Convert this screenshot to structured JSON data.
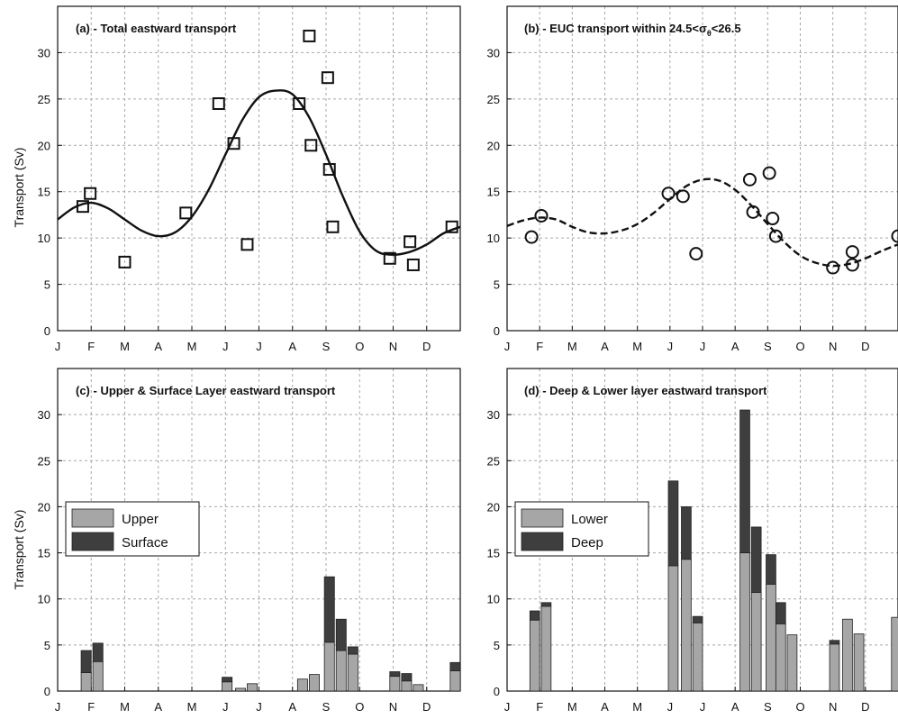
{
  "months": [
    "J",
    "F",
    "M",
    "A",
    "M",
    "J",
    "J",
    "A",
    "S",
    "O",
    "N",
    "D"
  ],
  "chart_data": [
    {
      "id": "a",
      "type": "scatter",
      "title": "(a) - Total eastward transport",
      "ylabel": "Transport (Sv)",
      "ylim": [
        0,
        35
      ],
      "yticks": [
        0,
        5,
        10,
        15,
        20,
        25,
        30
      ],
      "xlim": [
        0,
        12
      ],
      "grid": true,
      "marker": "square",
      "points": [
        {
          "x": 0.75,
          "y": 13.4
        },
        {
          "x": 0.97,
          "y": 14.8
        },
        {
          "x": 2.0,
          "y": 7.4
        },
        {
          "x": 3.82,
          "y": 12.7
        },
        {
          "x": 4.8,
          "y": 24.5
        },
        {
          "x": 5.25,
          "y": 20.2
        },
        {
          "x": 5.65,
          "y": 9.3
        },
        {
          "x": 7.2,
          "y": 24.5
        },
        {
          "x": 7.5,
          "y": 31.8
        },
        {
          "x": 7.55,
          "y": 20.0
        },
        {
          "x": 8.05,
          "y": 27.3
        },
        {
          "x": 8.1,
          "y": 17.4
        },
        {
          "x": 8.2,
          "y": 11.2
        },
        {
          "x": 9.9,
          "y": 7.8
        },
        {
          "x": 10.5,
          "y": 9.6
        },
        {
          "x": 10.6,
          "y": 7.1
        },
        {
          "x": 11.75,
          "y": 11.2
        }
      ],
      "curve": {
        "style": "solid",
        "x": [
          0,
          0.5,
          1,
          1.5,
          2,
          2.5,
          3,
          3.5,
          4,
          4.5,
          5,
          5.5,
          6,
          6.5,
          7,
          7.5,
          8,
          8.5,
          9,
          9.5,
          10,
          10.5,
          11,
          11.5,
          12
        ],
        "y": [
          12,
          13.3,
          13.8,
          13.2,
          12.0,
          10.8,
          10.2,
          10.6,
          12.3,
          15.2,
          19.0,
          22.7,
          25.2,
          25.9,
          25.5,
          23.0,
          19.0,
          14.5,
          10.7,
          8.6,
          8.2,
          8.5,
          9.3,
          10.5,
          11.2
        ]
      }
    },
    {
      "id": "b",
      "type": "scatter",
      "title": "(b) - EUC transport within 24.5<",
      "title_symbol": "σ",
      "title_sub": "θ",
      "title_tail": "<26.5",
      "ylim": [
        0,
        35
      ],
      "yticks": [
        0,
        5,
        10,
        15,
        20,
        25,
        30
      ],
      "xlim": [
        0,
        12
      ],
      "grid": true,
      "marker": "circle",
      "points": [
        {
          "x": 0.75,
          "y": 10.1
        },
        {
          "x": 1.05,
          "y": 12.4
        },
        {
          "x": 4.95,
          "y": 14.8
        },
        {
          "x": 5.4,
          "y": 14.5
        },
        {
          "x": 5.8,
          "y": 8.3
        },
        {
          "x": 7.45,
          "y": 16.3
        },
        {
          "x": 7.55,
          "y": 12.8
        },
        {
          "x": 8.05,
          "y": 17.0
        },
        {
          "x": 8.15,
          "y": 12.1
        },
        {
          "x": 8.25,
          "y": 10.2
        },
        {
          "x": 10.0,
          "y": 6.8
        },
        {
          "x": 10.6,
          "y": 8.5
        },
        {
          "x": 10.6,
          "y": 7.1
        },
        {
          "x": 12.0,
          "y": 10.2
        }
      ],
      "curve": {
        "style": "dashed",
        "x": [
          0,
          0.5,
          1,
          1.5,
          2,
          2.5,
          3,
          3.5,
          4,
          4.5,
          5,
          5.5,
          6,
          6.5,
          7,
          7.5,
          8,
          8.5,
          9,
          9.5,
          10,
          10.5,
          11,
          11.5,
          12
        ],
        "y": [
          11.3,
          11.9,
          12.2,
          12.0,
          11.2,
          10.6,
          10.5,
          10.8,
          11.5,
          12.7,
          14.2,
          15.6,
          16.3,
          16.2,
          15.2,
          13.5,
          11.5,
          9.6,
          8.1,
          7.3,
          7.0,
          7.2,
          7.8,
          8.6,
          9.3
        ]
      }
    },
    {
      "id": "c",
      "type": "bar",
      "stacked": true,
      "title": "(c) - Upper & Surface Layer eastward transport",
      "ylabel": "Transport (Sv)",
      "ylim": [
        0,
        35
      ],
      "yticks": [
        0,
        5,
        10,
        15,
        20,
        25,
        30
      ],
      "xlim": [
        0,
        12
      ],
      "grid": true,
      "legend_position": "middle-left",
      "series": [
        {
          "name": "Upper",
          "color": "#a6a6a6"
        },
        {
          "name": "Surface",
          "color": "#3e3e3e"
        }
      ],
      "bar_width": 0.3,
      "bars": [
        {
          "x": 0.85,
          "values": [
            2.0,
            2.4
          ]
        },
        {
          "x": 1.2,
          "values": [
            3.2,
            2.0
          ]
        },
        {
          "x": 5.05,
          "values": [
            1.0,
            0.5
          ]
        },
        {
          "x": 5.45,
          "values": [
            0.3,
            0.0
          ]
        },
        {
          "x": 5.8,
          "values": [
            0.8,
            0.0
          ]
        },
        {
          "x": 7.3,
          "values": [
            1.3,
            0.0
          ]
        },
        {
          "x": 7.65,
          "values": [
            1.8,
            0.0
          ]
        },
        {
          "x": 8.1,
          "values": [
            5.3,
            7.1
          ]
        },
        {
          "x": 8.45,
          "values": [
            4.4,
            3.4
          ]
        },
        {
          "x": 8.8,
          "values": [
            4.0,
            0.8
          ]
        },
        {
          "x": 10.05,
          "values": [
            1.6,
            0.5
          ]
        },
        {
          "x": 10.4,
          "values": [
            1.1,
            0.8
          ]
        },
        {
          "x": 10.75,
          "values": [
            0.7,
            0.0
          ]
        },
        {
          "x": 11.85,
          "values": [
            2.2,
            0.9
          ]
        }
      ]
    },
    {
      "id": "d",
      "type": "bar",
      "stacked": true,
      "title": "(d) - Deep & Lower layer eastward transport",
      "ylim": [
        0,
        35
      ],
      "yticks": [
        0,
        5,
        10,
        15,
        20,
        25,
        30
      ],
      "xlim": [
        0,
        12
      ],
      "grid": true,
      "legend_position": "middle-left",
      "series": [
        {
          "name": "Lower",
          "color": "#a6a6a6"
        },
        {
          "name": "Deep",
          "color": "#3e3e3e"
        }
      ],
      "bar_width": 0.3,
      "bars": [
        {
          "x": 0.85,
          "values": [
            7.7,
            1.0
          ]
        },
        {
          "x": 1.2,
          "values": [
            9.2,
            0.4
          ]
        },
        {
          "x": 5.1,
          "values": [
            13.6,
            9.2
          ]
        },
        {
          "x": 5.5,
          "values": [
            14.3,
            5.7
          ]
        },
        {
          "x": 5.85,
          "values": [
            7.4,
            0.7
          ]
        },
        {
          "x": 7.3,
          "values": [
            15.0,
            15.5
          ]
        },
        {
          "x": 7.65,
          "values": [
            10.7,
            7.1
          ]
        },
        {
          "x": 8.1,
          "values": [
            11.6,
            3.2
          ]
        },
        {
          "x": 8.4,
          "values": [
            7.3,
            2.3
          ]
        },
        {
          "x": 8.75,
          "values": [
            6.1,
            0.0
          ]
        },
        {
          "x": 10.05,
          "values": [
            5.1,
            0.4
          ]
        },
        {
          "x": 10.45,
          "values": [
            7.8,
            0.0
          ]
        },
        {
          "x": 10.8,
          "values": [
            6.2,
            0.0
          ]
        },
        {
          "x": 11.95,
          "values": [
            8.0,
            0.0
          ]
        }
      ]
    }
  ]
}
